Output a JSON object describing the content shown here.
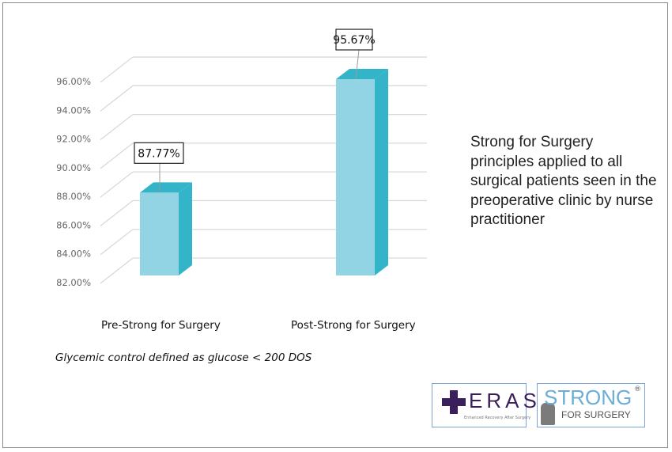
{
  "chart_data": {
    "type": "bar",
    "style": "3d",
    "categories": [
      "Pre-Strong for Surgery",
      "Post-Strong for Surgery"
    ],
    "values": [
      87.77,
      95.67
    ],
    "data_labels": [
      "87.77%",
      "95.67%"
    ],
    "ylim": [
      82,
      96
    ],
    "yticks": [
      "82.00%",
      "84.00%",
      "86.00%",
      "88.00%",
      "90.00%",
      "92.00%",
      "94.00%",
      "96.00%"
    ],
    "ytick_values": [
      82,
      84,
      86,
      88,
      90,
      92,
      94,
      96
    ],
    "grid": true,
    "colors": {
      "front": "#93d4e4",
      "side": "#34b4c9",
      "top": "#34b4c9",
      "grid": "#d9d9d9"
    }
  },
  "note": "Glycemic control defined as glucose < 200 DOS",
  "side_text": "Strong for Surgery principles applied to all surgical patients seen in the preoperative clinic by nurse practitioner",
  "logos": {
    "eras": {
      "title": "ERAS",
      "subtitle": "Enhanced Recovery After Surgery",
      "color": "#3b1f5c"
    },
    "strong": {
      "title": "STRONG",
      "registered": "®",
      "subtitle": "FOR SURGERY",
      "color": "#6aaed6"
    }
  }
}
